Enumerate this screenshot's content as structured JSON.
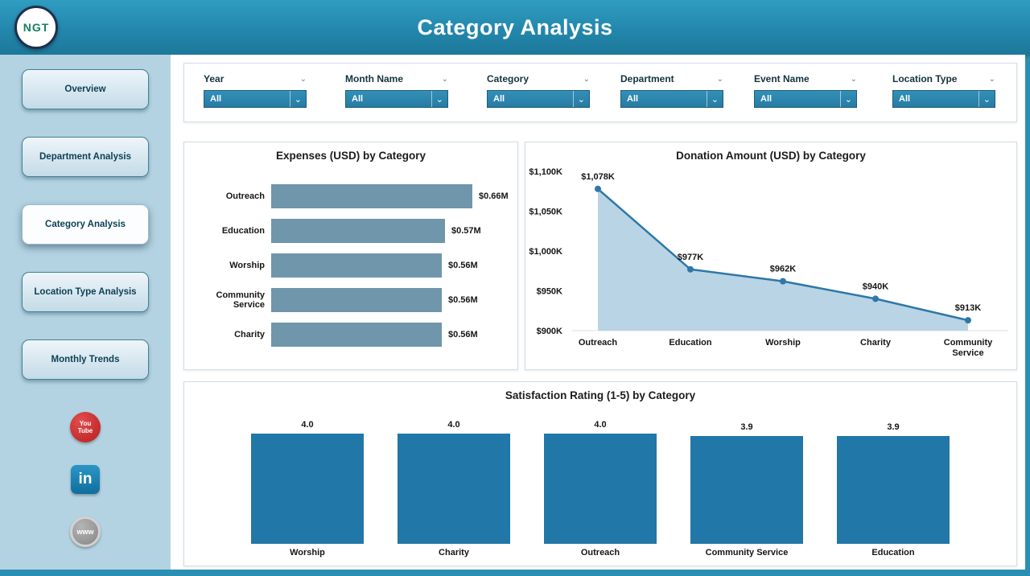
{
  "header": {
    "title": "Category Analysis",
    "logo_text": "NGT"
  },
  "sidebar": {
    "items": [
      {
        "label": "Overview",
        "active": false
      },
      {
        "label": "Department Analysis",
        "active": false
      },
      {
        "label": "Category Analysis",
        "active": true
      },
      {
        "label": "Location Type Analysis",
        "active": false
      },
      {
        "label": "Monthly Trends",
        "active": false
      }
    ],
    "social": [
      {
        "name": "youtube",
        "text": "You Tube"
      },
      {
        "name": "linkedin",
        "text": "in"
      },
      {
        "name": "website",
        "text": "www"
      }
    ]
  },
  "filters": [
    {
      "label": "Year",
      "value": "All"
    },
    {
      "label": "Month Name",
      "value": "All"
    },
    {
      "label": "Category",
      "value": "All"
    },
    {
      "label": "Department",
      "value": "All"
    },
    {
      "label": "Event Name",
      "value": "All"
    },
    {
      "label": "Location Type",
      "value": "All"
    }
  ],
  "chart_data": [
    {
      "type": "bar",
      "orientation": "horizontal",
      "title": "Expenses (USD) by Category",
      "categories": [
        "Outreach",
        "Education",
        "Worship",
        "Community Service",
        "Charity"
      ],
      "values": [
        0.66,
        0.57,
        0.56,
        0.56,
        0.56
      ],
      "value_labels": [
        "$0.66M",
        "$0.57M",
        "$0.56M",
        "$0.56M",
        "$0.56M"
      ],
      "xlabel": "",
      "ylabel": "",
      "legend": "none"
    },
    {
      "type": "area",
      "title": "Donation Amount (USD) by Category",
      "categories": [
        "Outreach",
        "Education",
        "Worship",
        "Charity",
        "Community Service"
      ],
      "values_k": [
        1078,
        977,
        962,
        940,
        913
      ],
      "value_labels": [
        "$1,078K",
        "$977K",
        "$962K",
        "$940K",
        "$913K"
      ],
      "y_ticks": [
        "$1,100K",
        "$1,050K",
        "$1,000K",
        "$950K",
        "$900K"
      ],
      "ylim_k": [
        900,
        1100
      ],
      "grid": "baseline-only",
      "legend": "none"
    },
    {
      "type": "bar",
      "orientation": "vertical",
      "title": "Satisfaction Rating (1-5) by Category",
      "categories": [
        "Worship",
        "Charity",
        "Outreach",
        "Community Service",
        "Education"
      ],
      "values": [
        4.0,
        4.0,
        4.0,
        3.9,
        3.9
      ],
      "value_labels": [
        "4.0",
        "4.0",
        "4.0",
        "3.9",
        "3.9"
      ],
      "ylim": [
        0,
        4.2
      ],
      "legend": "none"
    }
  ],
  "colors": {
    "header_teal": "#2387ad",
    "sidebar_bg": "#b4d3e2",
    "filter_select_bg": "#2e86ae",
    "hbar_fill": "#6f96aa",
    "area_fill": "#b9d4e4",
    "area_line": "#2e78a8",
    "vbar_fill": "#2177a7"
  }
}
